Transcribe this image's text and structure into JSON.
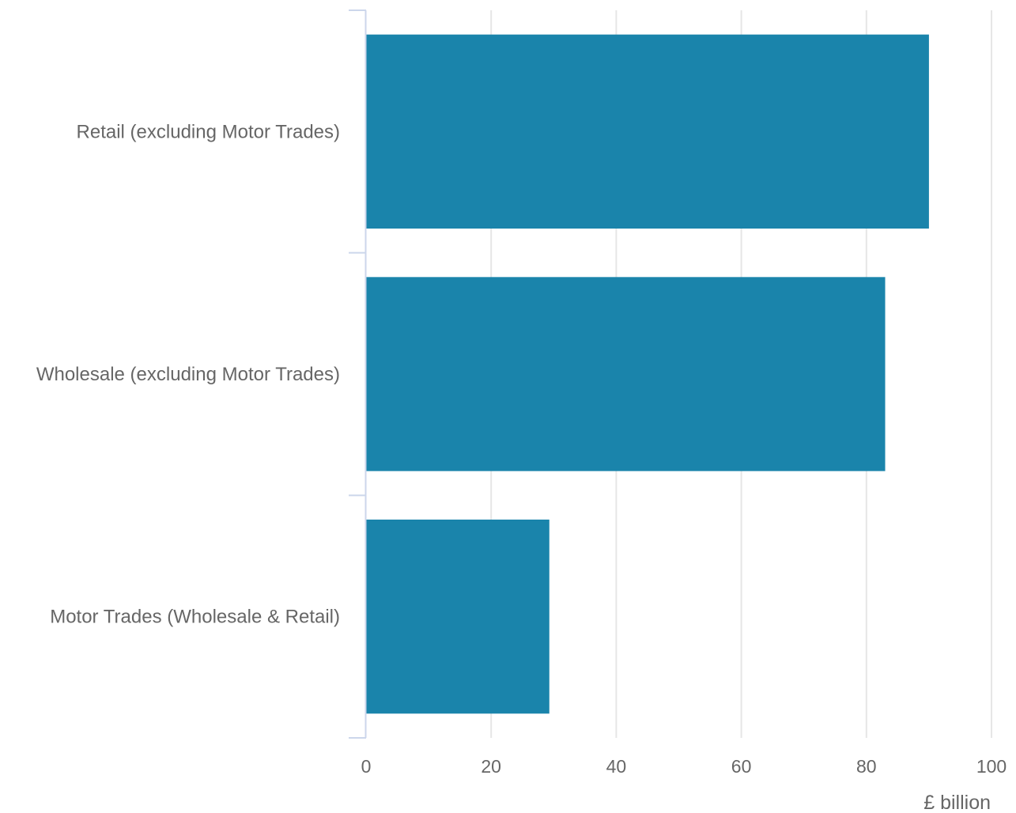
{
  "chart_data": {
    "type": "bar",
    "orientation": "horizontal",
    "categories": [
      "Retail (excluding Motor Trades)",
      "Wholesale (excluding Motor Trades)",
      "Motor Trades (Wholesale & Retail)"
    ],
    "values": [
      90,
      83,
      29.3
    ],
    "title": "",
    "xlabel": "£ billion",
    "ylabel": "",
    "xlim": [
      0,
      100
    ],
    "xticks": [
      0,
      20,
      40,
      60,
      80,
      100
    ],
    "grid": "vertical",
    "legend": "none",
    "colors": {
      "bar": "#1a84ab",
      "grid": "#e6e6e6",
      "axis": "#ccd6eb",
      "text": "#666666"
    }
  }
}
